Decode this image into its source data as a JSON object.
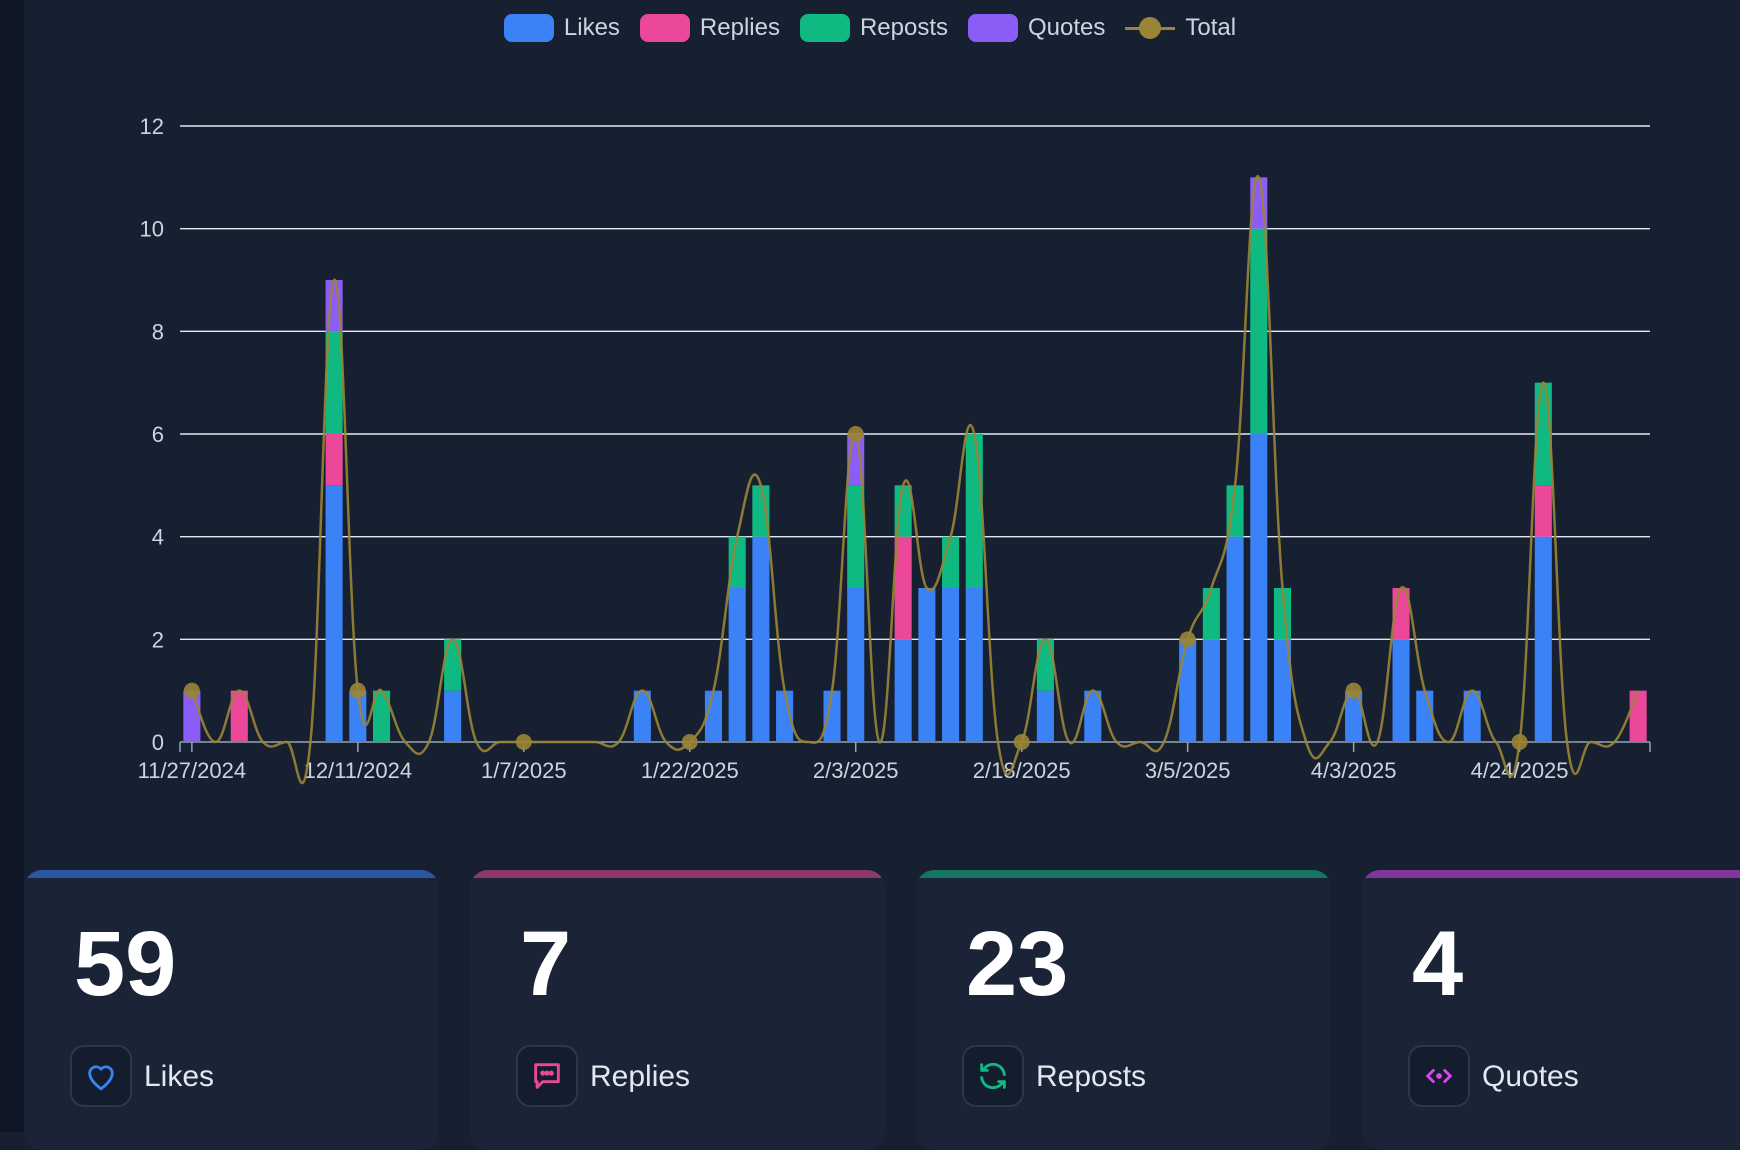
{
  "legend": [
    {
      "label": "Likes",
      "color": "#3b82f6"
    },
    {
      "label": "Replies",
      "color": "#ec4899"
    },
    {
      "label": "Reposts",
      "color": "#10b981"
    },
    {
      "label": "Quotes",
      "color": "#8b5cf6"
    },
    {
      "label": "Total",
      "color": "#9a8435"
    }
  ],
  "chart_data": {
    "type": "bar",
    "stacked": true,
    "ylim": [
      0,
      12
    ],
    "yticks": [
      0,
      2,
      4,
      6,
      8,
      10,
      12
    ],
    "xtick_labels": [
      "11/27/2024",
      "12/11/2024",
      "1/7/2025",
      "1/22/2025",
      "2/3/2025",
      "2/18/2025",
      "3/5/2025",
      "4/3/2025",
      "4/24/2025"
    ],
    "xtick_positions": [
      0,
      7,
      14,
      21,
      28,
      35,
      42,
      49,
      56
    ],
    "n_categories": 62,
    "grid": true,
    "legend_position": "top",
    "series": [
      {
        "name": "Likes",
        "color": "#3b82f6",
        "points": [
          [
            0,
            0
          ],
          [
            6,
            5
          ],
          [
            7,
            1
          ],
          [
            11,
            1
          ],
          [
            19,
            1
          ],
          [
            22,
            1
          ],
          [
            23,
            3
          ],
          [
            24,
            4
          ],
          [
            25,
            1
          ],
          [
            27,
            1
          ],
          [
            28,
            3
          ],
          [
            30,
            2
          ],
          [
            31,
            3
          ],
          [
            32,
            3
          ],
          [
            33,
            3
          ],
          [
            36,
            1
          ],
          [
            38,
            1
          ],
          [
            42,
            2
          ],
          [
            43,
            2
          ],
          [
            44,
            4
          ],
          [
            45,
            6
          ],
          [
            46,
            2
          ],
          [
            49,
            1
          ],
          [
            51,
            2
          ],
          [
            52,
            1
          ],
          [
            54,
            1
          ],
          [
            57,
            4
          ]
        ]
      },
      {
        "name": "Replies",
        "color": "#ec4899",
        "points": [
          [
            2,
            1
          ],
          [
            6,
            1
          ],
          [
            30,
            2
          ],
          [
            51,
            1
          ],
          [
            57,
            1
          ],
          [
            61,
            1
          ]
        ]
      },
      {
        "name": "Reposts",
        "color": "#10b981",
        "points": [
          [
            6,
            2
          ],
          [
            8,
            1
          ],
          [
            11,
            1
          ],
          [
            23,
            1
          ],
          [
            24,
            1
          ],
          [
            28,
            2
          ],
          [
            30,
            1
          ],
          [
            32,
            1
          ],
          [
            33,
            3
          ],
          [
            36,
            1
          ],
          [
            43,
            1
          ],
          [
            44,
            1
          ],
          [
            45,
            4
          ],
          [
            46,
            1
          ],
          [
            57,
            2
          ]
        ]
      },
      {
        "name": "Quotes",
        "color": "#8b5cf6",
        "points": [
          [
            0,
            1
          ],
          [
            6,
            1
          ],
          [
            28,
            1
          ],
          [
            45,
            1
          ]
        ]
      }
    ],
    "total_series": {
      "name": "Total",
      "color": "#9a8435",
      "marker_indices": [
        0,
        7,
        14,
        21,
        28,
        35,
        42,
        49,
        56
      ]
    }
  },
  "stats": [
    {
      "value": "59",
      "label": "Likes",
      "color": "#3b82f6",
      "icon": "heart-icon"
    },
    {
      "value": "7",
      "label": "Replies",
      "color": "#ec4899",
      "icon": "message-icon"
    },
    {
      "value": "23",
      "label": "Reposts",
      "color": "#10b981",
      "icon": "repost-icon"
    },
    {
      "value": "4",
      "label": "Quotes",
      "color": "#d946ef",
      "icon": "quote-icon"
    }
  ]
}
